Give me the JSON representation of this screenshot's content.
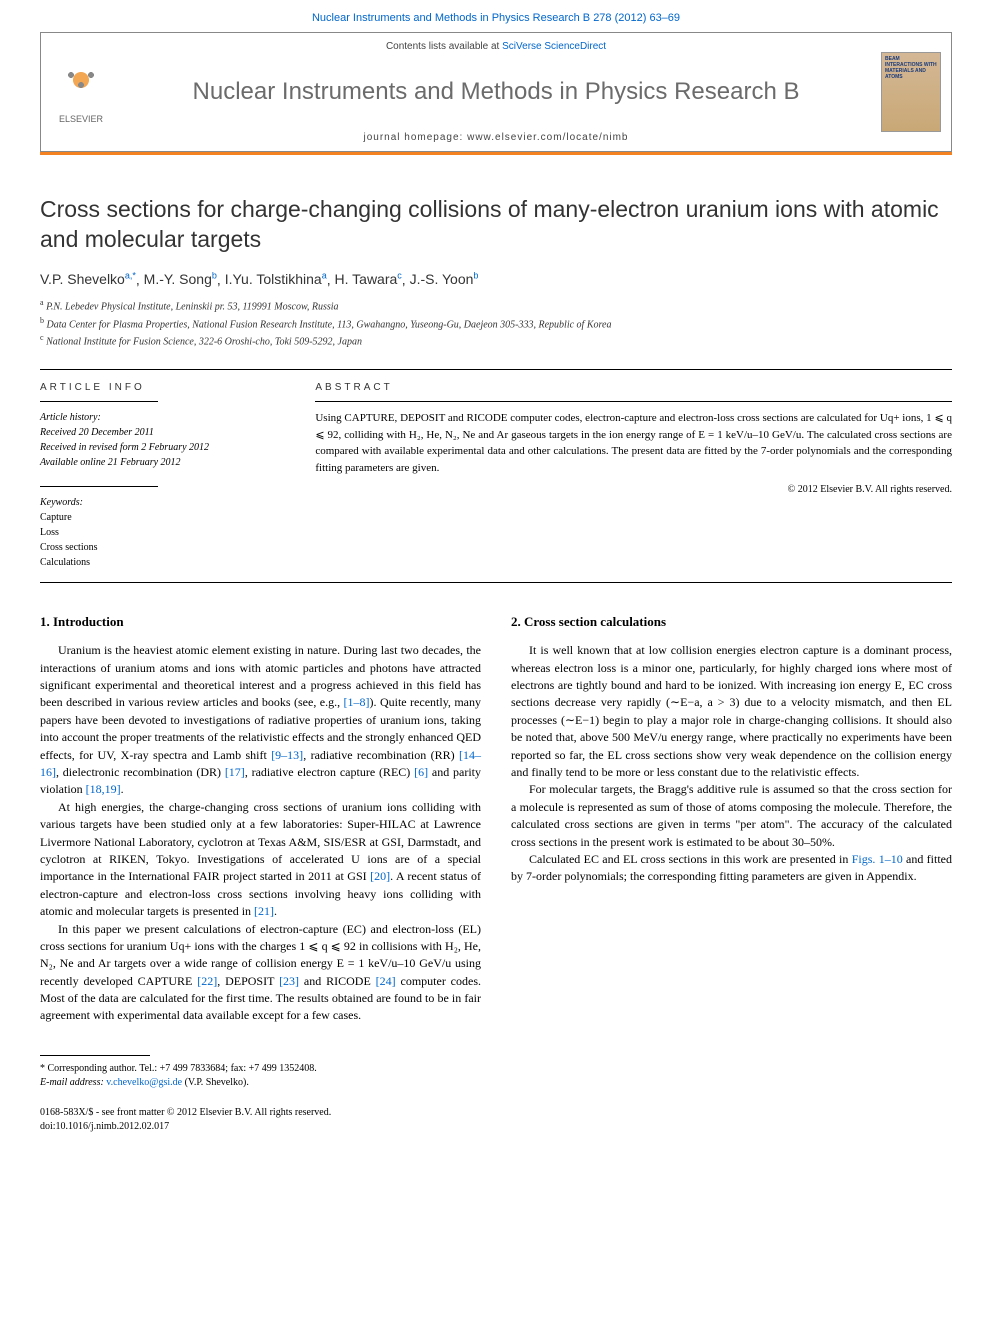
{
  "header": {
    "citation_line": "Nuclear Instruments and Methods in Physics Research B 278 (2012) 63–69",
    "contents_label": "Contents lists available at",
    "contents_link": "SciVerse ScienceDirect",
    "journal_title": "Nuclear Instruments and Methods in Physics Research B",
    "homepage_label": "journal homepage:",
    "homepage_url": "www.elsevier.com/locate/nimb",
    "publisher_label": "ELSEVIER",
    "cover_text": "BEAM INTERACTIONS WITH MATERIALS AND ATOMS"
  },
  "article": {
    "title": "Cross sections for charge-changing collisions of many-electron uranium ions with atomic and molecular targets",
    "authors_html": "V.P. Shevelko",
    "authors": [
      {
        "name": "V.P. Shevelko",
        "marks": "a,*"
      },
      {
        "name": "M.-Y. Song",
        "marks": "b"
      },
      {
        "name": "I.Yu. Tolstikhina",
        "marks": "a"
      },
      {
        "name": "H. Tawara",
        "marks": "c"
      },
      {
        "name": "J.-S. Yoon",
        "marks": "b"
      }
    ],
    "affiliations": [
      {
        "mark": "a",
        "text": "P.N. Lebedev Physical Institute, Leninskii pr. 53, 119991 Moscow, Russia"
      },
      {
        "mark": "b",
        "text": "Data Center for Plasma Properties, National Fusion Research Institute, 113, Gwahangno, Yuseong-Gu, Daejeon 305-333, Republic of Korea"
      },
      {
        "mark": "c",
        "text": "National Institute for Fusion Science, 322-6 Oroshi-cho, Toki 509-5292, Japan"
      }
    ]
  },
  "info": {
    "article_info_label": "ARTICLE INFO",
    "abstract_label": "ABSTRACT",
    "history_label": "Article history:",
    "history": [
      "Received 20 December 2011",
      "Received in revised form 2 February 2012",
      "Available online 21 February 2012"
    ],
    "keywords_label": "Keywords:",
    "keywords": [
      "Capture",
      "Loss",
      "Cross sections",
      "Calculations"
    ],
    "abstract_text": "Using CAPTURE, DEPOSIT and RICODE computer codes, electron-capture and electron-loss cross sections are calculated for Uq+ ions, 1 ⩽ q ⩽ 92, colliding with H₂, He, N₂, Ne and Ar gaseous targets in the ion energy range of E = 1 keV/u–10 GeV/u. The calculated cross sections are compared with available experimental data and other calculations. The present data are fitted by the 7-order polynomials and the corresponding fitting parameters are given.",
    "copyright": "© 2012 Elsevier B.V. All rights reserved."
  },
  "sections": {
    "s1_title": "1. Introduction",
    "s1_p1": "Uranium is the heaviest atomic element existing in nature. During last two decades, the interactions of uranium atoms and ions with atomic particles and photons have attracted significant experimental and theoretical interest and a progress achieved in this field has been described in various review articles and books (see, e.g., [1–8]). Quite recently, many papers have been devoted to investigations of radiative properties of uranium ions, taking into account the proper treatments of the relativistic effects and the strongly enhanced QED effects, for UV, X-ray spectra and Lamb shift [9–13], radiative recombination (RR) [14–16], dielectronic recombination (DR) [17], radiative electron capture (REC) [6] and parity violation [18,19].",
    "s1_p2": "At high energies, the charge-changing cross sections of uranium ions colliding with various targets have been studied only at a few laboratories: Super-HILAC at Lawrence Livermore National Laboratory, cyclotron at Texas A&M, SIS/ESR at GSI, Darmstadt, and cyclotron at RIKEN, Tokyo. Investigations of accelerated U ions are of a special importance in the International FAIR project started in 2011 at GSI [20]. A recent status of electron-capture and electron-loss cross sections involving heavy ions colliding with atomic and molecular targets is presented in [21].",
    "s1_p3": "In this paper we present calculations of electron-capture (EC) and electron-loss (EL) cross sections for uranium Uq+ ions with the charges 1 ⩽ q ⩽ 92 in collisions with H₂, He, N₂, Ne and Ar targets over a wide range of collision energy E = 1 keV/u–10 GeV/u using recently developed CAPTURE [22], DEPOSIT [23] and RICODE [24] computer codes. Most of the data are calculated for the first time. The results obtained are found to be in fair agreement with experimental data available except for a few cases.",
    "s2_title": "2. Cross section calculations",
    "s2_p1": "It is well known that at low collision energies electron capture is a dominant process, whereas electron loss is a minor one, particularly, for highly charged ions where most of electrons are tightly bound and hard to be ionized. With increasing ion energy E, EC cross sections decrease very rapidly (∼E−a, a > 3) due to a velocity mismatch, and then EL processes (∼E−1) begin to play a major role in charge-changing collisions. It should also be noted that, above 500 MeV/u energy range, where practically no experiments have been reported so far, the EL cross sections show very weak dependence on the collision energy and finally tend to be more or less constant due to the relativistic effects.",
    "s2_p2": "For molecular targets, the Bragg's additive rule is assumed so that the cross section for a molecule is represented as sum of those of atoms composing the molecule. Therefore, the calculated cross sections are given in terms \"per atom\". The accuracy of the calculated cross sections in the present work is estimated to be about 30–50%.",
    "s2_p3": "Calculated EC and EL cross sections in this work are presented in Figs. 1–10 and fitted by 7-order polynomials; the corresponding fitting parameters are given in Appendix."
  },
  "footer": {
    "corr_label": "* Corresponding author. Tel.: +7 499 7833684; fax: +7 499 1352408.",
    "email_label": "E-mail address:",
    "email": "v.chevelko@gsi.de",
    "email_person": "(V.P. Shevelko).",
    "issn_line": "0168-583X/$ - see front matter © 2012 Elsevier B.V. All rights reserved.",
    "doi_line": "doi:10.1016/j.nimb.2012.02.017"
  },
  "colors": {
    "link": "#0066cc",
    "orange_bar": "#f58220",
    "grey_title": "#6b6b6b",
    "text": "#000000"
  }
}
